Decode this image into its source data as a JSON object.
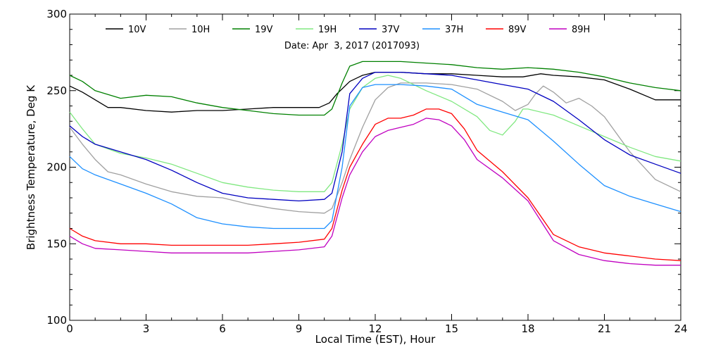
{
  "chart_data": {
    "type": "line",
    "title": "",
    "subtitle": "Date: Apr  3, 2017 (2017093)",
    "xlabel": "Local Time (EST), Hour",
    "ylabel": "Brightness Temperature, Deg K",
    "xlim": [
      0,
      24
    ],
    "ylim": [
      100,
      300
    ],
    "xticks": [
      0,
      3,
      6,
      9,
      12,
      15,
      18,
      21,
      24
    ],
    "yticks": [
      100,
      150,
      200,
      250,
      300
    ],
    "grid": false,
    "legend_position": "top",
    "series": [
      {
        "name": "10V",
        "color": "#000000",
        "x": [
          0,
          0.5,
          1,
          1.5,
          2,
          3,
          4,
          5,
          6,
          7,
          8,
          9,
          9.8,
          10.2,
          10.5,
          11,
          11.5,
          12,
          13,
          14,
          15,
          16,
          17,
          17.8,
          18.5,
          19,
          20,
          21,
          22,
          23,
          24
        ],
        "y": [
          253,
          249,
          244,
          239,
          239,
          237,
          236,
          237,
          237,
          238,
          239,
          239,
          239,
          242,
          248,
          256,
          260,
          262,
          262,
          261,
          261,
          260,
          259,
          259,
          261,
          260,
          259,
          257,
          251,
          244,
          244
        ]
      },
      {
        "name": "10H",
        "color": "#a0a0a0",
        "x": [
          0,
          0.5,
          1,
          1.5,
          2,
          3,
          4,
          5,
          6,
          7,
          8,
          9,
          10,
          10.3,
          10.7,
          11,
          11.5,
          12,
          12.5,
          13,
          14,
          15,
          16,
          17,
          17.5,
          18,
          18.3,
          18.6,
          19,
          19.5,
          20,
          20.5,
          21,
          22,
          23,
          24
        ],
        "y": [
          226,
          215,
          205,
          197,
          195,
          189,
          184,
          181,
          180,
          176,
          173,
          171,
          170,
          173,
          190,
          205,
          226,
          244,
          252,
          255,
          255,
          254,
          251,
          243,
          237,
          241,
          248,
          253,
          249,
          242,
          245,
          240,
          233,
          210,
          192,
          184
        ]
      },
      {
        "name": "19V",
        "color": "#008000",
        "x": [
          0,
          0.5,
          1,
          2,
          3,
          4,
          5,
          6,
          7,
          8,
          9,
          10,
          10.3,
          10.7,
          11,
          11.5,
          12,
          13,
          14,
          15,
          16,
          17,
          18,
          19,
          20,
          21,
          22,
          23,
          24
        ],
        "y": [
          260,
          256,
          250,
          245,
          247,
          246,
          242,
          239,
          237,
          235,
          234,
          234,
          238,
          255,
          266,
          269,
          269,
          269,
          268,
          267,
          265,
          264,
          265,
          264,
          262,
          259,
          255,
          252,
          250
        ]
      },
      {
        "name": "19H",
        "color": "#80e880",
        "x": [
          0,
          0.5,
          1,
          1.5,
          2,
          3,
          4,
          5,
          6,
          7,
          8,
          9,
          10,
          10.3,
          10.7,
          11,
          11.5,
          12,
          12.5,
          13,
          14,
          15,
          16,
          16.5,
          17,
          17.5,
          17.8,
          18,
          19,
          20,
          21,
          22,
          23,
          24
        ],
        "y": [
          236,
          225,
          215,
          212,
          209,
          206,
          202,
          196,
          190,
          187,
          185,
          184,
          184,
          190,
          215,
          238,
          252,
          258,
          260,
          258,
          250,
          243,
          233,
          224,
          221,
          230,
          238,
          238,
          234,
          227,
          220,
          213,
          207,
          204
        ]
      },
      {
        "name": "37V",
        "color": "#0000c0",
        "x": [
          0,
          0.5,
          1,
          2,
          3,
          4,
          5,
          6,
          7,
          8,
          9,
          10,
          10.3,
          10.7,
          11,
          11.5,
          12,
          13,
          14,
          15,
          16,
          17,
          18,
          19,
          20,
          21,
          22,
          23,
          24
        ],
        "y": [
          227,
          220,
          215,
          210,
          205,
          198,
          190,
          183,
          180,
          179,
          178,
          179,
          183,
          210,
          248,
          258,
          262,
          262,
          261,
          260,
          257,
          254,
          251,
          243,
          231,
          218,
          208,
          202,
          196
        ]
      },
      {
        "name": "37H",
        "color": "#1e90ff",
        "x": [
          0,
          0.5,
          1,
          2,
          3,
          4,
          5,
          6,
          7,
          8,
          9,
          10,
          10.3,
          10.7,
          11,
          11.5,
          12,
          13,
          14,
          15,
          16,
          17,
          18,
          19,
          20,
          21,
          22,
          23,
          24
        ],
        "y": [
          207,
          199,
          195,
          189,
          183,
          176,
          167,
          163,
          161,
          160,
          160,
          160,
          165,
          200,
          240,
          252,
          254,
          254,
          253,
          251,
          241,
          236,
          231,
          217,
          202,
          188,
          181,
          176,
          171
        ]
      },
      {
        "name": "89V",
        "color": "#ff0000",
        "x": [
          0,
          0.5,
          1,
          2,
          3,
          4,
          5,
          6,
          7,
          8,
          9,
          10,
          10.3,
          10.7,
          11,
          11.5,
          12,
          12.5,
          13,
          13.5,
          14,
          14.5,
          15,
          15.5,
          16,
          17,
          18,
          19,
          20,
          21,
          22,
          23,
          24
        ],
        "y": [
          160,
          155,
          152,
          150,
          150,
          149,
          149,
          149,
          149,
          150,
          151,
          153,
          160,
          185,
          200,
          215,
          228,
          232,
          232,
          234,
          238,
          238,
          235,
          225,
          211,
          197,
          180,
          156,
          148,
          144,
          142,
          140,
          139
        ]
      },
      {
        "name": "89H",
        "color": "#c000c0",
        "x": [
          0,
          0.5,
          1,
          2,
          3,
          4,
          5,
          6,
          7,
          8,
          9,
          10,
          10.3,
          10.7,
          11,
          11.5,
          12,
          12.5,
          13,
          13.5,
          14,
          14.5,
          15,
          15.5,
          16,
          17,
          18,
          19,
          20,
          21,
          22,
          23,
          24
        ],
        "y": [
          155,
          150,
          147,
          146,
          145,
          144,
          144,
          144,
          144,
          145,
          146,
          148,
          155,
          180,
          195,
          210,
          220,
          224,
          226,
          228,
          232,
          231,
          227,
          218,
          205,
          193,
          178,
          152,
          143,
          139,
          137,
          136,
          136
        ]
      }
    ]
  }
}
